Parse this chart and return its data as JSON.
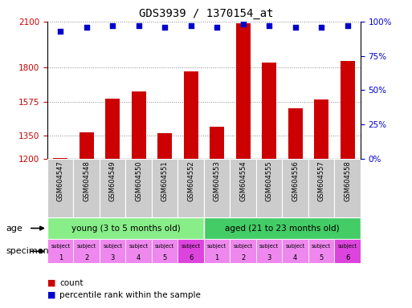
{
  "title": "GDS3939 / 1370154_at",
  "samples": [
    "GSM604547",
    "GSM604548",
    "GSM604549",
    "GSM604550",
    "GSM604551",
    "GSM604552",
    "GSM604553",
    "GSM604554",
    "GSM604555",
    "GSM604556",
    "GSM604557",
    "GSM604558"
  ],
  "counts": [
    1205,
    1370,
    1595,
    1640,
    1365,
    1775,
    1410,
    2090,
    1830,
    1530,
    1590,
    1840
  ],
  "percentiles": [
    93,
    96,
    97,
    97,
    96,
    97,
    96,
    98,
    97,
    96,
    96,
    97
  ],
  "ylim_left": [
    1200,
    2100
  ],
  "ylim_right": [
    0,
    100
  ],
  "yticks_left": [
    1200,
    1350,
    1575,
    1800,
    2100
  ],
  "yticks_right": [
    0,
    25,
    50,
    75,
    100
  ],
  "bar_color": "#cc0000",
  "dot_color": "#0000cc",
  "age_groups": [
    {
      "label": "young (3 to 5 months old)",
      "start": 0,
      "end": 6,
      "color": "#88ee88"
    },
    {
      "label": "aged (21 to 23 months old)",
      "start": 6,
      "end": 12,
      "color": "#44cc66"
    }
  ],
  "specimen_colors": [
    "#ee88ee",
    "#ee88ee",
    "#ee88ee",
    "#ee88ee",
    "#ee88ee",
    "#dd44dd",
    "#ee88ee",
    "#ee88ee",
    "#ee88ee",
    "#ee88ee",
    "#ee88ee",
    "#dd44dd"
  ],
  "tick_label_color_left": "#cc0000",
  "tick_label_color_right": "#0000cc",
  "background_color": "#ffffff",
  "xticklabel_bg": "#cccccc",
  "grid_color": "#888888"
}
